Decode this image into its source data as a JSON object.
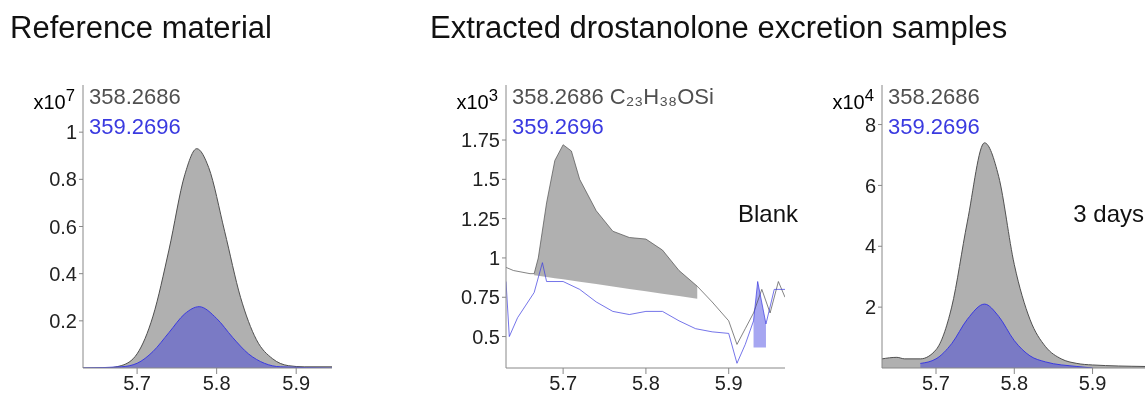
{
  "chart_data": [
    {
      "type": "area",
      "title": "Reference material",
      "ylabel": "x10$^{7}$",
      "xlim": [
        5.632,
        5.945
      ],
      "xticks": [
        5.7,
        5.8,
        5.9
      ],
      "ylim": [
        0,
        1.2
      ],
      "yticks": [
        0.2,
        0.4,
        0.6,
        0.8,
        1
      ],
      "series": [
        {
          "name": "358.2686",
          "color": "#505050",
          "x": [
            5.632,
            5.66,
            5.68,
            5.7,
            5.72,
            5.74,
            5.76,
            5.775,
            5.79,
            5.81,
            5.83,
            5.85,
            5.87,
            5.89,
            5.91,
            5.945
          ],
          "values": [
            0,
            0,
            0.01,
            0.06,
            0.22,
            0.5,
            0.82,
            0.93,
            0.85,
            0.58,
            0.3,
            0.12,
            0.04,
            0.01,
            0.005,
            0.005
          ]
        },
        {
          "name": "359.2696",
          "color": "#3a3ae0",
          "x": [
            5.632,
            5.68,
            5.7,
            5.72,
            5.74,
            5.76,
            5.778,
            5.8,
            5.82,
            5.84,
            5.86,
            5.88,
            5.945
          ],
          "values": [
            0,
            0.005,
            0.02,
            0.07,
            0.15,
            0.23,
            0.26,
            0.21,
            0.13,
            0.06,
            0.02,
            0.005,
            0
          ]
        }
      ]
    },
    {
      "type": "line",
      "title": "Extracted drostanolone excretion samples",
      "ylabel": "x10$^{3}$",
      "annotations": [
        "Blank"
      ],
      "xlim": [
        5.631,
        5.968
      ],
      "xticks": [
        5.7,
        5.8,
        5.9
      ],
      "ylim": [
        0.3,
        2.1
      ],
      "yticks": [
        0.5,
        0.75,
        1,
        1.25,
        1.5,
        1.75
      ],
      "series": [
        {
          "name": "358.2686 C₂₃H₃₈OSi",
          "color": "#505050",
          "x": [
            5.631,
            5.64,
            5.66,
            5.665,
            5.67,
            5.68,
            5.69,
            5.7,
            5.71,
            5.72,
            5.74,
            5.76,
            5.78,
            5.8,
            5.82,
            5.84,
            5.862,
            5.88,
            5.9,
            5.91,
            5.92,
            5.93,
            5.94,
            5.95,
            5.96,
            5.968
          ],
          "values": [
            0.94,
            0.92,
            0.9,
            0.9,
            1,
            1.35,
            1.62,
            1.72,
            1.68,
            1.5,
            1.3,
            1.17,
            1.13,
            1.12,
            1.05,
            0.92,
            0.82,
            0.72,
            0.6,
            0.45,
            0.55,
            0.65,
            0.8,
            0.65,
            0.85,
            0.75
          ],
          "lower": [
            null,
            null,
            null,
            0.89,
            0.886,
            0.879,
            0.871,
            0.864,
            0.856,
            0.849,
            0.834,
            0.818,
            0.803,
            0.788,
            0.773,
            0.758,
            0.74,
            null,
            null,
            null,
            null,
            null,
            null,
            null,
            null,
            null
          ],
          "upper": [
            null,
            null,
            null,
            0.9,
            1,
            1.35,
            1.62,
            1.72,
            1.68,
            1.5,
            1.3,
            1.17,
            1.13,
            1.12,
            1.05,
            0.92,
            0.82,
            null,
            null,
            null,
            null,
            null,
            null,
            null,
            null,
            null
          ]
        },
        {
          "name": "359.2696",
          "color": "#3a3ae0",
          "x": [
            5.631,
            5.635,
            5.645,
            5.655,
            5.665,
            5.675,
            5.68,
            5.7,
            5.72,
            5.74,
            5.76,
            5.78,
            5.8,
            5.82,
            5.84,
            5.86,
            5.88,
            5.9,
            5.91,
            5.92,
            5.93,
            5.935,
            5.945,
            5.955,
            5.968
          ],
          "values": [
            0.85,
            0.5,
            0.62,
            0.7,
            0.78,
            0.97,
            0.85,
            0.85,
            0.8,
            0.72,
            0.66,
            0.64,
            0.66,
            0.66,
            0.6,
            0.55,
            0.53,
            0.52,
            0.33,
            0.45,
            0.6,
            0.85,
            0.58,
            0.8,
            0.8
          ],
          "lower": [
            null,
            null,
            null,
            null,
            null,
            null,
            null,
            null,
            null,
            null,
            null,
            null,
            null,
            null,
            null,
            null,
            null,
            null,
            null,
            null,
            0.43,
            0.43,
            0.43,
            null,
            null
          ],
          "upper": [
            null,
            null,
            null,
            null,
            null,
            null,
            null,
            null,
            null,
            null,
            null,
            null,
            null,
            null,
            null,
            null,
            null,
            null,
            null,
            null,
            0.6,
            0.85,
            0.58,
            null,
            null
          ]
        }
      ]
    },
    {
      "type": "area",
      "ylabel": "x10$^{4}$",
      "annotations": [
        "3 days"
      ],
      "xlim": [
        5.631,
        5.967
      ],
      "xticks": [
        5.7,
        5.8,
        5.9
      ],
      "ylim": [
        0,
        9.3
      ],
      "yticks": [
        2,
        4,
        6,
        8
      ],
      "series": [
        {
          "name": "358.2686",
          "color": "#505050",
          "x": [
            5.631,
            5.65,
            5.66,
            5.68,
            5.7,
            5.72,
            5.74,
            5.762,
            5.78,
            5.8,
            5.82,
            5.84,
            5.86,
            5.88,
            5.9,
            5.967
          ],
          "values": [
            0.3,
            0.35,
            0.3,
            0.3,
            0.6,
            2,
            4.8,
            7.4,
            6.3,
            3.4,
            1.6,
            0.7,
            0.3,
            0.15,
            0.1,
            0.05
          ]
        },
        {
          "name": "359.2696",
          "color": "#3a3ae0",
          "x": [
            5.68,
            5.7,
            5.72,
            5.74,
            5.762,
            5.78,
            5.8,
            5.82,
            5.84,
            5.88,
            5.9
          ],
          "values": [
            0.15,
            0.3,
            0.8,
            1.6,
            2.1,
            1.7,
            0.9,
            0.4,
            0.2,
            0.05,
            0
          ]
        }
      ]
    }
  ]
}
